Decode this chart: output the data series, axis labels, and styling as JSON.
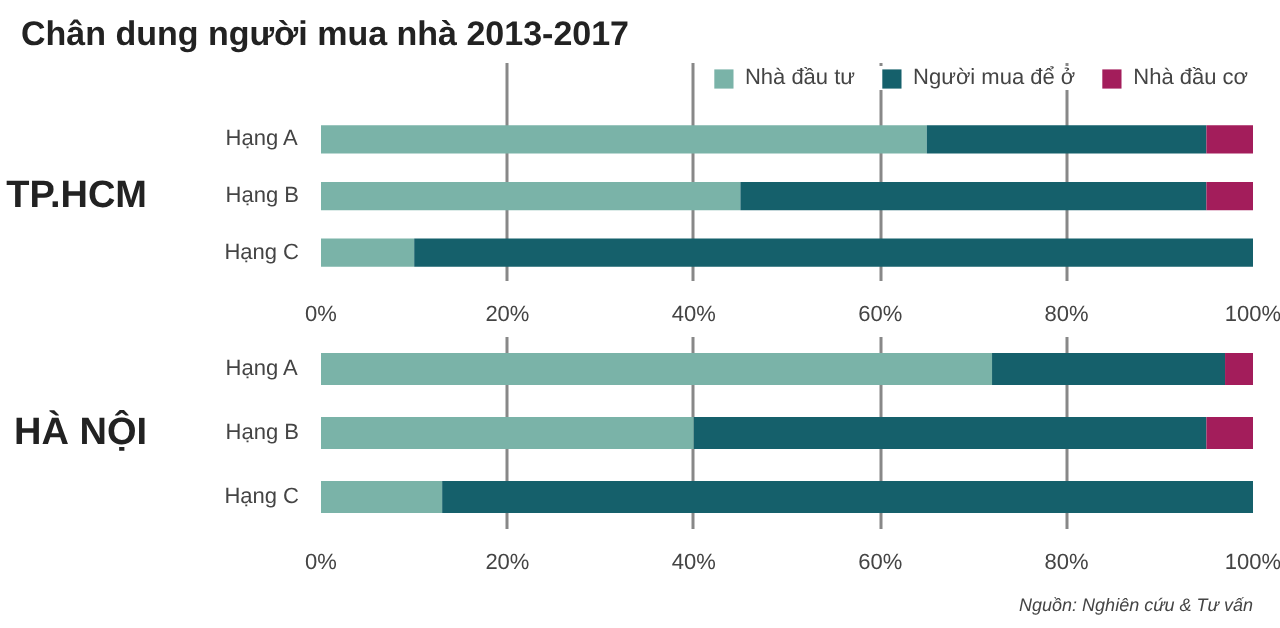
{
  "chart_data": [
    {
      "type": "bar",
      "orientation": "horizontal",
      "stacked": true,
      "title": "Chân dung người mua nhà 2013-2017",
      "ylabel": "TP.HCM",
      "categories": [
        "Hạng A",
        "Hạng B",
        "Hạng C"
      ],
      "series": [
        {
          "name": "Nhà đầu tư",
          "color": "#7ab3a8",
          "values": [
            65,
            45,
            10
          ]
        },
        {
          "name": "Người mua để ở",
          "color": "#15606b",
          "values": [
            30,
            50,
            90
          ]
        },
        {
          "name": "Nhà đầu cơ",
          "color": "#a31d5b",
          "values": [
            5,
            5,
            0
          ]
        }
      ],
      "xlim": [
        0,
        100
      ],
      "xticks": [
        {
          "value": 0,
          "label": "0%"
        },
        {
          "value": 20,
          "label": "20%"
        },
        {
          "value": 40,
          "label": "40%"
        },
        {
          "value": 60,
          "label": "60%"
        },
        {
          "value": 80,
          "label": "80%"
        },
        {
          "value": 100,
          "label": "100%"
        }
      ],
      "grid": "x",
      "legend": "top right"
    },
    {
      "type": "bar",
      "orientation": "horizontal",
      "stacked": true,
      "ylabel": "HÀ NỘI",
      "categories": [
        "Hạng A",
        "Hạng B",
        "Hạng C"
      ],
      "series": [
        {
          "color": "#7ab3a8",
          "values": [
            72,
            40,
            13
          ]
        },
        {
          "color": "#15606b",
          "values": [
            25,
            55,
            87
          ]
        },
        {
          "color": "#a31d5b",
          "values": [
            3,
            5,
            0
          ]
        }
      ],
      "xlim": [
        0,
        100
      ],
      "xticks": [
        {
          "value": 0,
          "label": "0%"
        },
        {
          "value": 20,
          "label": "20%"
        },
        {
          "value": 40,
          "label": "40%"
        },
        {
          "value": 60,
          "label": "60%"
        },
        {
          "value": 80,
          "label": "80%"
        },
        {
          "value": 100,
          "label": "100%"
        }
      ],
      "grid": "x",
      "annotations": [
        "Nguồn: Nghiên cứu & Tư vấn"
      ]
    }
  ]
}
